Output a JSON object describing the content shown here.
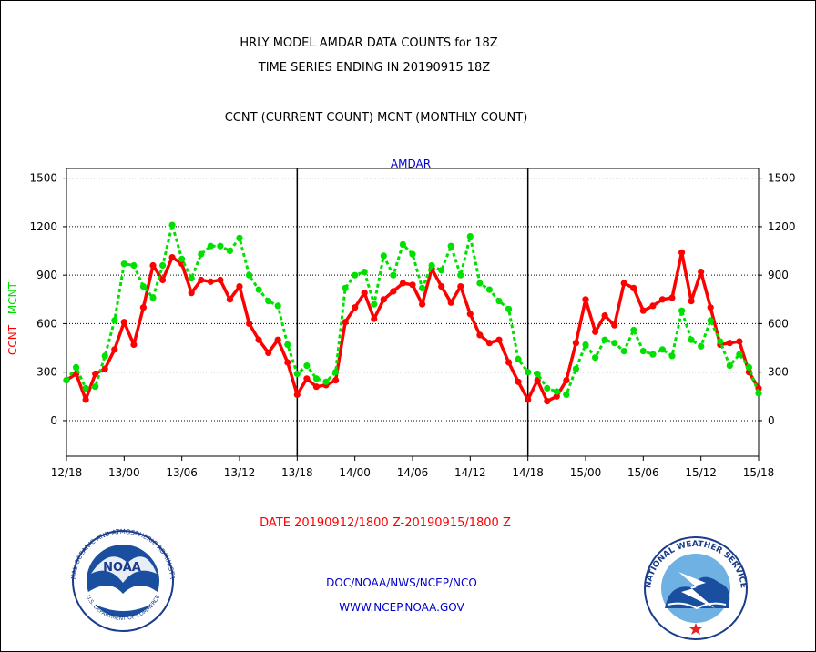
{
  "header": {
    "title_line1": "HRLY MODEL AMDAR DATA COUNTS for 18Z",
    "title_line2": "TIME SERIES ENDING IN 20190915 18Z",
    "legend_line": "CCNT (CURRENT COUNT) MCNT (MONTHLY COUNT)"
  },
  "footer": {
    "date_range": "DATE 20190912/1800 Z-20190915/1800 Z",
    "credit": "DOC/NOAA/NWS/NCEP/NCO",
    "website": "WWW.NCEP.NOAA.GOV"
  },
  "logos": {
    "noaa_text": "NOAA",
    "noaa_ring_text": "NATIONAL OCEANIC AND ATMOSPHERIC ADMINISTRATION",
    "noaa_bottom_text": "U.S. DEPARTMENT OF COMMERCE",
    "nws_ring_text": "NATIONAL WEATHER SERVICE"
  },
  "colors": {
    "ccnt": "#ff0000",
    "mcnt": "#00e000",
    "axis_title": "#0000cc",
    "divider": "#000000"
  },
  "chart_data": {
    "type": "line",
    "title": "AMDAR",
    "ylabel_parts": [
      {
        "text": "CCNT",
        "color": "#ff0000"
      },
      {
        "text": "MCNT",
        "color": "#00e000"
      }
    ],
    "x_tick_labels": [
      "12/18",
      "13/00",
      "13/06",
      "13/12",
      "13/18",
      "14/00",
      "14/06",
      "14/12",
      "14/18",
      "15/00",
      "15/06",
      "15/12",
      "15/18"
    ],
    "x_unit": "hours since 12/18",
    "xlim": [
      0,
      72
    ],
    "ylim": [
      -220,
      1560
    ],
    "y_ticks": [
      0,
      300,
      600,
      900,
      1200,
      1500
    ],
    "grid": "horizontal dotted",
    "day_dividers_x": [
      24,
      48
    ],
    "series": [
      {
        "name": "CCNT",
        "color": "#ff0000",
        "values": [
          250,
          290,
          130,
          290,
          320,
          440,
          610,
          470,
          700,
          960,
          870,
          1010,
          970,
          790,
          870,
          860,
          870,
          750,
          830,
          600,
          500,
          420,
          500,
          360,
          160,
          260,
          210,
          220,
          250,
          610,
          700,
          790,
          630,
          750,
          800,
          850,
          840,
          720,
          940,
          830,
          730,
          830,
          660,
          530,
          480,
          500,
          360,
          240,
          130,
          250,
          120,
          150,
          250,
          480,
          750,
          550,
          650,
          590,
          850,
          820,
          680,
          710,
          750,
          760,
          1040,
          740,
          920,
          700,
          470,
          480,
          490,
          300,
          200
        ]
      },
      {
        "name": "MCNT",
        "color": "#00e000",
        "values": [
          250,
          330,
          200,
          210,
          400,
          620,
          970,
          960,
          830,
          760,
          960,
          1210,
          1000,
          880,
          1030,
          1080,
          1080,
          1050,
          1130,
          900,
          810,
          740,
          710,
          470,
          290,
          340,
          260,
          240,
          300,
          820,
          900,
          920,
          720,
          1020,
          900,
          1090,
          1030,
          820,
          960,
          930,
          1080,
          900,
          1140,
          850,
          810,
          740,
          690,
          380,
          300,
          290,
          200,
          180,
          160,
          320,
          470,
          390,
          500,
          480,
          430,
          560,
          430,
          410,
          440,
          400,
          680,
          500,
          460,
          620,
          490,
          340,
          410,
          330,
          170
        ]
      }
    ]
  }
}
